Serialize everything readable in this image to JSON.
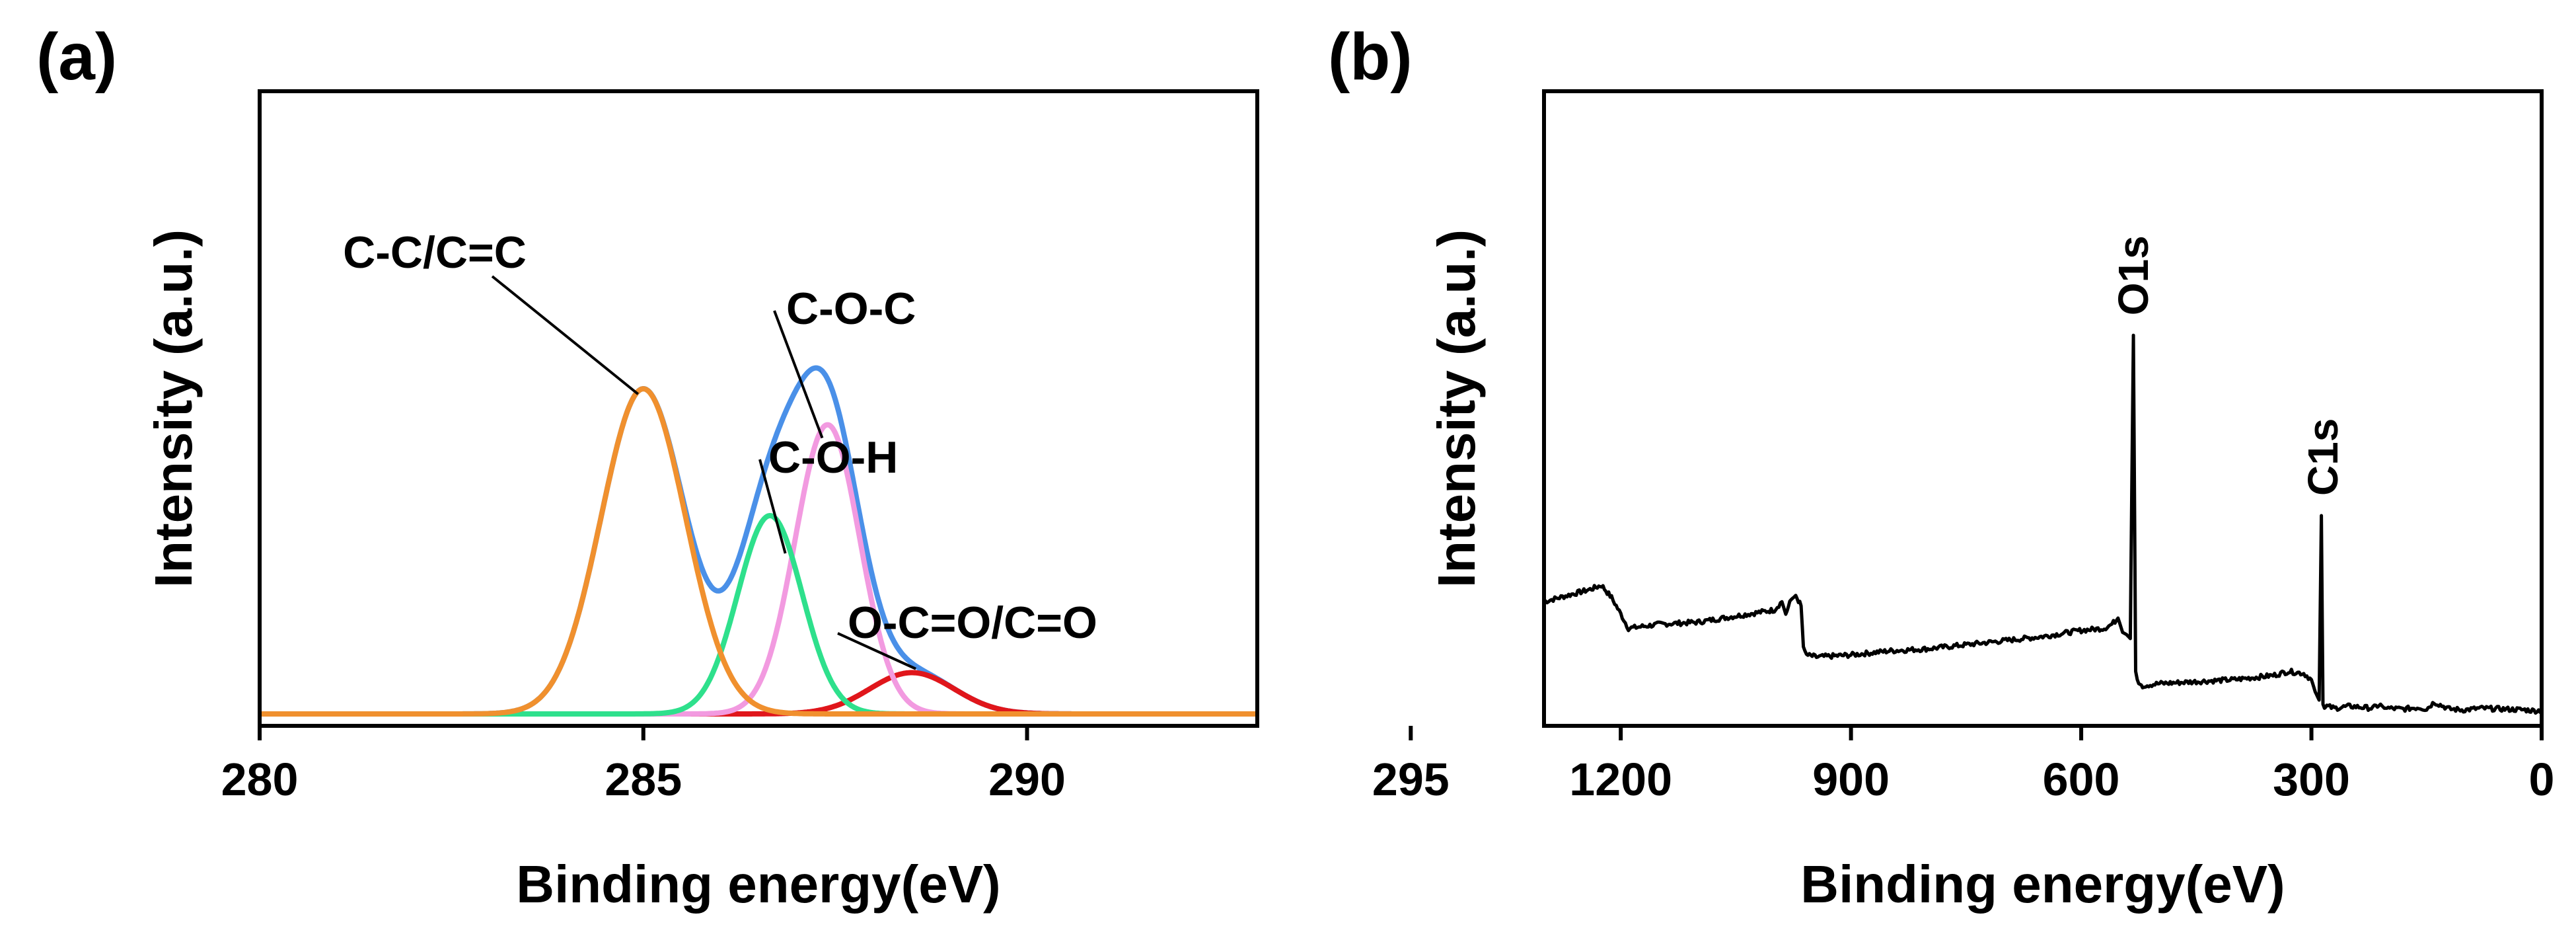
{
  "chart_data": [
    {
      "id": "a",
      "type": "line",
      "panel_label": "(a)",
      "title": "",
      "xlabel": "Binding energy(eV)",
      "ylabel": "Intensity (a.u.)",
      "xlim": [
        280,
        293
      ],
      "ylim": [
        0,
        1.0
      ],
      "x_ticks": [
        280,
        285,
        290,
        295
      ],
      "x_tick_labels": [
        "280",
        "285",
        "290",
        "295"
      ],
      "grid": false,
      "legend": null,
      "components": [
        {
          "name": "C-C/C=C",
          "center": 285.0,
          "height": 0.787,
          "sigma": 0.55,
          "color": "#F0902E"
        },
        {
          "name": "C-O-H",
          "center": 286.65,
          "height": 0.48,
          "sigma": 0.42,
          "color": "#2EE08C"
        },
        {
          "name": "C-O-C",
          "center": 287.4,
          "height": 0.7,
          "sigma": 0.42,
          "color": "#F29AE0"
        },
        {
          "name": "O-C=O/C=O",
          "center": 288.5,
          "height": 0.1,
          "sigma": 0.55,
          "color": "#E0161B"
        }
      ],
      "envelope": {
        "name": "Envelope",
        "color": "#4A90E8"
      },
      "annotations": [
        {
          "text": "C-C/C=C",
          "target_x": 285.0,
          "target_series": "C-C/C=C"
        },
        {
          "text": "C-O-C",
          "target_x": 287.4,
          "target_series": "C-O-C"
        },
        {
          "text": "C-O-H",
          "target_x": 286.8,
          "target_series": "C-O-H"
        },
        {
          "text": "O-C=O/C=O",
          "target_x": 288.5,
          "target_series": "O-C=O/C=O"
        }
      ]
    },
    {
      "id": "b",
      "type": "line",
      "panel_label": "(b)",
      "title": "",
      "xlabel": "Binding energy(eV)",
      "ylabel": "Intensity (a.u.)",
      "xlim": [
        1300,
        0
      ],
      "ylim": [
        0,
        1.0
      ],
      "x_ticks": [
        1200,
        900,
        600,
        300,
        0
      ],
      "x_tick_labels": [
        "1200",
        "900",
        "600",
        "300",
        "0"
      ],
      "grid": false,
      "legend": null,
      "series": [
        {
          "name": "Survey",
          "color": "#000000",
          "x": [
            1300,
            1260,
            1240,
            1225,
            1212,
            1200,
            1190,
            1150,
            1100,
            1050,
            1000,
            990,
            985,
            978,
            972,
            965,
            962,
            958,
            945,
            900,
            850,
            800,
            750,
            700,
            650,
            600,
            570,
            560,
            552,
            546,
            541,
            536,
            532,
            529,
            527,
            525,
            520,
            500,
            450,
            400,
            350,
            330,
            310,
            300,
            295,
            290,
            287,
            285,
            283,
            280,
            270,
            250,
            220,
            210,
            205,
            200,
            180,
            160,
            150,
            140,
            120,
            100,
            80,
            50,
            20,
            10,
            0
          ],
          "y": [
            0.29,
            0.31,
            0.32,
            0.33,
            0.3,
            0.26,
            0.225,
            0.235,
            0.24,
            0.255,
            0.27,
            0.29,
            0.26,
            0.295,
            0.305,
            0.28,
            0.18,
            0.16,
            0.155,
            0.16,
            0.17,
            0.175,
            0.185,
            0.195,
            0.205,
            0.22,
            0.225,
            0.235,
            0.25,
            0.215,
            0.21,
            0.2,
            0.94,
            0.12,
            0.1,
            0.09,
            0.085,
            0.09,
            0.095,
            0.1,
            0.11,
            0.12,
            0.115,
            0.1,
            0.07,
            0.05,
            0.5,
            0.04,
            0.03,
            0.035,
            0.03,
            0.035,
            0.03,
            0.04,
            0.03,
            0.03,
            0.028,
            0.032,
            0.028,
            0.045,
            0.028,
            0.026,
            0.03,
            0.028,
            0.026,
            0.024,
            0.025
          ]
        }
      ],
      "annotations": [
        {
          "text": "O1s",
          "target_x": 532,
          "rotation": "vertical"
        },
        {
          "text": "C1s",
          "target_x": 285,
          "rotation": "vertical"
        }
      ]
    }
  ]
}
